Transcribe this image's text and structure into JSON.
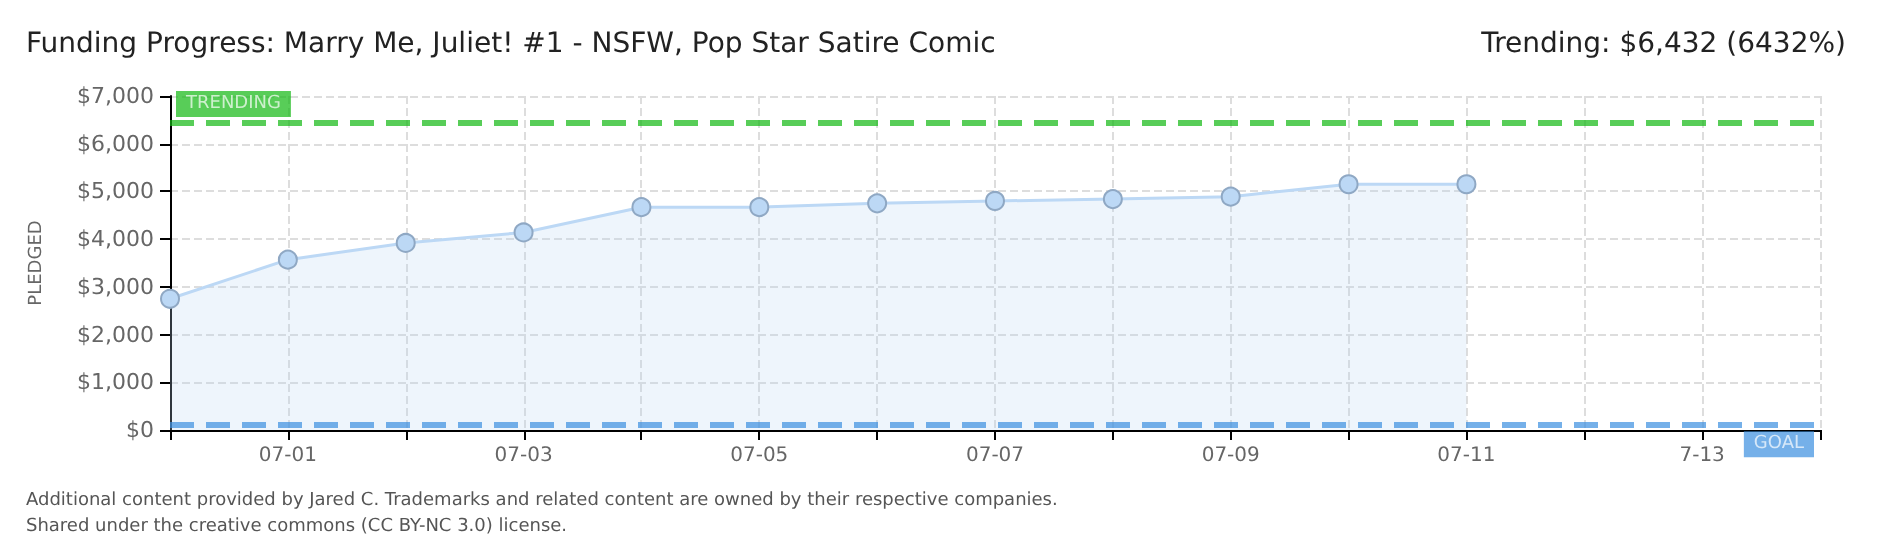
{
  "chart_data": {
    "type": "area",
    "title": "Funding Progress: Marry Me, Juliet! #1 - NSFW, Pop Star Satire Comic",
    "subtitle": "Trending: $6,432 (6432%)",
    "ylabel": "PLEDGED",
    "x": [
      "--06-30",
      "--07-01",
      "--07-02",
      "--07-03",
      "--07-04",
      "--07-05",
      "--07-06",
      "--07-07",
      "--07-08",
      "--07-09",
      "--07-10",
      "--07-11"
    ],
    "series": [
      {
        "color": "#bcd8f5",
        "values": [
          2750,
          3570,
          3920,
          4140,
          4670,
          4670,
          4750,
          4800,
          4840,
          4890,
          5150,
          5150
        ]
      }
    ],
    "xlim": [
      "--06-30",
      "--07-14"
    ],
    "xticks": [
      {
        "value": "--06-30",
        "label": null
      },
      {
        "value": "--07-01",
        "label": "07-01"
      },
      {
        "value": "--07-02",
        "label": null
      },
      {
        "value": "--07-03",
        "label": "07-03"
      },
      {
        "value": "--07-04",
        "label": null
      },
      {
        "value": "--07-05",
        "label": "07-05"
      },
      {
        "value": "--07-06",
        "label": null
      },
      {
        "value": "--07-07",
        "label": "07-07"
      },
      {
        "value": "--07-08",
        "label": null
      },
      {
        "value": "--07-09",
        "label": "07-09"
      },
      {
        "value": "--07-10",
        "label": null
      },
      {
        "value": "--07-11",
        "label": "07-11"
      },
      {
        "value": "--07-12",
        "label": null
      },
      {
        "value": "--07-13",
        "label": "7-13"
      },
      {
        "value": "--07-14",
        "label": null
      }
    ],
    "ylim": [
      0,
      7000
    ],
    "yticks": [
      {
        "value": 0,
        "label": "$0"
      },
      {
        "value": 1000,
        "label": "$1,000"
      },
      {
        "value": 2000,
        "label": "$2,000"
      },
      {
        "value": 3000,
        "label": "$3,000"
      },
      {
        "value": 4000,
        "label": "$4,000"
      },
      {
        "value": 5000,
        "label": "$5,000"
      },
      {
        "value": 6000,
        "label": "$6,000"
      },
      {
        "value": 7000,
        "label": "$7,000"
      }
    ],
    "ref_lines": [
      {
        "axis": "y",
        "value": 6432,
        "label": "TRENDING",
        "color": "#11b811",
        "line_style": "dashed"
      },
      {
        "axis": "y",
        "value": 100,
        "label": "GOAL",
        "color": "#3a8ee0",
        "line_style": "dashed"
      }
    ],
    "annotations": [
      "Additional content provided by Jared C. Trademarks and related content are owned by their respective companies.",
      "Shared under the creative commons (CC BY-NC 3.0) license."
    ],
    "grid": true,
    "marker": "circle",
    "line_style": "solid"
  }
}
